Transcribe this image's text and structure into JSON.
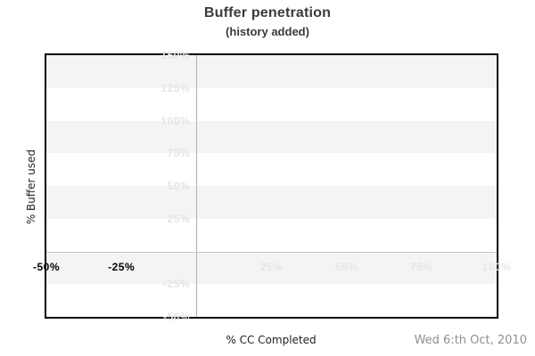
{
  "header": {
    "title": "Buffer penetration",
    "subtitle": "(history added)"
  },
  "footer": {
    "date": "Wed 6:th Oct, 2010"
  },
  "colors": {
    "band_gray": "#f4f4f4",
    "band_white": "#ffffff",
    "light_label": "#e5e5e5",
    "dark_label": "#000000",
    "zero_x_line": "#b0b0b0",
    "zero_y_line": "#c6c6c6",
    "border": "#000000",
    "title_text": "#3a3a3a",
    "date_text": "#909090"
  },
  "chart_data": {
    "type": "line",
    "title": "Buffer penetration",
    "subtitle": "(history added)",
    "xlabel": "% CC Completed",
    "ylabel": "% Buffer used",
    "xlim": [
      -50,
      100
    ],
    "ylim": [
      -50,
      150
    ],
    "grid": "horizontal-bands-alternating",
    "band_step": 25,
    "legend": "none",
    "series": [],
    "zero_gridlines": {
      "x_at": 0,
      "y_at": 0
    },
    "y_ticks": [
      {
        "value": 150,
        "label": "150%",
        "emphasis": false
      },
      {
        "value": 125,
        "label": "125%",
        "emphasis": false
      },
      {
        "value": 100,
        "label": "100%",
        "emphasis": false
      },
      {
        "value": 75,
        "label": "75%",
        "emphasis": false
      },
      {
        "value": 50,
        "label": "50%",
        "emphasis": false
      },
      {
        "value": 25,
        "label": "25%",
        "emphasis": false
      },
      {
        "value": -25,
        "label": "-25%",
        "emphasis": false
      },
      {
        "value": -50,
        "label": "-50%",
        "emphasis": false
      }
    ],
    "x_ticks": [
      {
        "value": -50,
        "label": "-50%",
        "emphasis": true
      },
      {
        "value": -25,
        "label": "-25%",
        "emphasis": true
      },
      {
        "value": 25,
        "label": "25%",
        "emphasis": false
      },
      {
        "value": 50,
        "label": "50%",
        "emphasis": false
      },
      {
        "value": 75,
        "label": "75%",
        "emphasis": false
      },
      {
        "value": 100,
        "label": "100%",
        "emphasis": false
      }
    ]
  }
}
